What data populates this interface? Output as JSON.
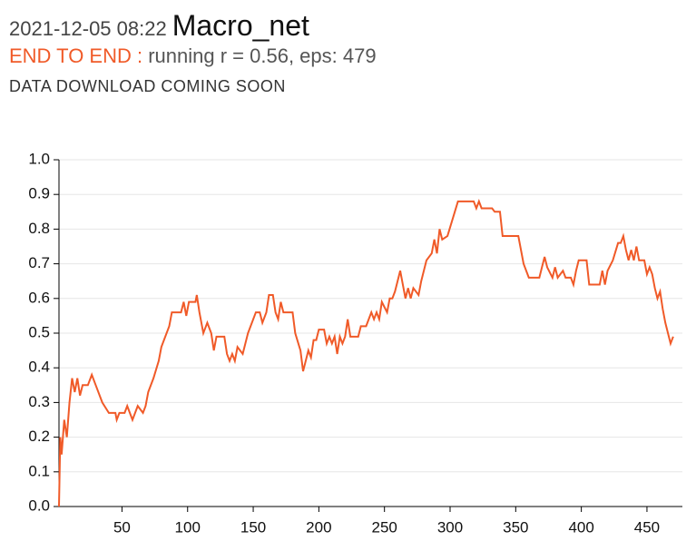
{
  "header": {
    "timestamp": "2021-12-05 08:22",
    "title": "Macro_net",
    "label": "END TO END :",
    "status": "running r = 0.56, eps: 479",
    "notice": "DATA DOWNLOAD COMING SOON"
  },
  "chart_data": {
    "type": "line",
    "color": "#f05a28",
    "grid": true,
    "xlim": [
      2,
      477
    ],
    "ylim": [
      0,
      1
    ],
    "xticks": [
      50,
      100,
      150,
      200,
      250,
      300,
      350,
      400,
      450
    ],
    "yticks": [
      {
        "value": 0,
        "label": "0.0"
      },
      0.1,
      0.2,
      0.3,
      0.4,
      0.5,
      0.6,
      0.7,
      0.8,
      0.9,
      {
        "value": 1,
        "label": "1.0"
      }
    ],
    "x": [
      2,
      3,
      4,
      6,
      8,
      10,
      12,
      14,
      16,
      18,
      20,
      24,
      27,
      30,
      35,
      40,
      45,
      46,
      48,
      52,
      54,
      56,
      58,
      60,
      62,
      66,
      68,
      70,
      74,
      78,
      80,
      82,
      86,
      88,
      95,
      97,
      99,
      101,
      106,
      107,
      109,
      112,
      115,
      118,
      120,
      122,
      128,
      130,
      132,
      134,
      136,
      138,
      142,
      146,
      150,
      152,
      155,
      157,
      160,
      162,
      165,
      167,
      169,
      171,
      173,
      180,
      182,
      186,
      188,
      190,
      192,
      194,
      196,
      198,
      200,
      204,
      206,
      208,
      210,
      212,
      214,
      216,
      218,
      220,
      222,
      224,
      230,
      232,
      236,
      238,
      240,
      242,
      244,
      246,
      248,
      252,
      254,
      256,
      258,
      260,
      262,
      264,
      266,
      268,
      270,
      272,
      276,
      278,
      280,
      282,
      286,
      288,
      290,
      292,
      294,
      298,
      302,
      306,
      318,
      320,
      322,
      324,
      332,
      334,
      338,
      340,
      352,
      356,
      360,
      368,
      370,
      372,
      374,
      378,
      380,
      382,
      386,
      388,
      392,
      394,
      396,
      398,
      404,
      406,
      414,
      416,
      418,
      420,
      424,
      428,
      430,
      432,
      434,
      436,
      438,
      440,
      442,
      444,
      448,
      450,
      452,
      454,
      456,
      458,
      460,
      462,
      464,
      466,
      468,
      470
    ],
    "series": [
      {
        "name": "running r",
        "values": [
          0,
          0.2,
          0.15,
          0.25,
          0.2,
          0.3,
          0.37,
          0.33,
          0.37,
          0.32,
          0.35,
          0.35,
          0.38,
          0.35,
          0.3,
          0.27,
          0.27,
          0.25,
          0.27,
          0.27,
          0.29,
          0.27,
          0.25,
          0.27,
          0.29,
          0.27,
          0.29,
          0.33,
          0.37,
          0.42,
          0.46,
          0.48,
          0.52,
          0.56,
          0.56,
          0.59,
          0.55,
          0.59,
          0.59,
          0.61,
          0.56,
          0.5,
          0.53,
          0.5,
          0.45,
          0.49,
          0.49,
          0.44,
          0.42,
          0.44,
          0.42,
          0.46,
          0.44,
          0.5,
          0.54,
          0.56,
          0.56,
          0.53,
          0.56,
          0.61,
          0.61,
          0.56,
          0.54,
          0.59,
          0.56,
          0.56,
          0.5,
          0.45,
          0.39,
          0.42,
          0.45,
          0.43,
          0.48,
          0.48,
          0.51,
          0.51,
          0.47,
          0.49,
          0.47,
          0.49,
          0.44,
          0.49,
          0.47,
          0.49,
          0.54,
          0.49,
          0.49,
          0.52,
          0.52,
          0.54,
          0.56,
          0.54,
          0.56,
          0.54,
          0.59,
          0.56,
          0.6,
          0.6,
          0.62,
          0.65,
          0.68,
          0.64,
          0.6,
          0.63,
          0.6,
          0.63,
          0.61,
          0.65,
          0.68,
          0.71,
          0.73,
          0.77,
          0.73,
          0.8,
          0.77,
          0.78,
          0.83,
          0.88,
          0.88,
          0.86,
          0.88,
          0.86,
          0.86,
          0.85,
          0.85,
          0.78,
          0.78,
          0.7,
          0.66,
          0.66,
          0.69,
          0.72,
          0.69,
          0.66,
          0.69,
          0.66,
          0.68,
          0.66,
          0.66,
          0.64,
          0.68,
          0.71,
          0.71,
          0.64,
          0.64,
          0.68,
          0.64,
          0.68,
          0.71,
          0.76,
          0.76,
          0.78,
          0.74,
          0.71,
          0.74,
          0.71,
          0.75,
          0.71,
          0.71,
          0.67,
          0.69,
          0.67,
          0.63,
          0.6,
          0.62,
          0.57,
          0.53,
          0.5,
          0.47,
          0.49
        ]
      }
    ]
  }
}
